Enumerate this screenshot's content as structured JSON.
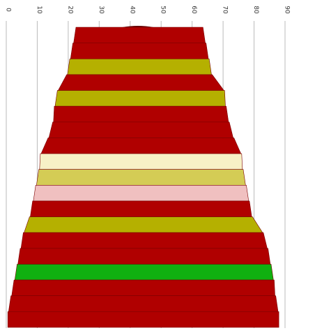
{
  "chart_data": {
    "type": "bar",
    "orientation": "stacked-centered-bands",
    "axis": {
      "ticks": [
        "0",
        "10",
        "20",
        "30",
        "40",
        "50",
        "60",
        "70",
        "80",
        "90"
      ],
      "range": [
        0,
        90
      ],
      "tick_label_rotation": "vertical",
      "grid": true
    },
    "bands": [
      {
        "left": 22.5,
        "right": 63.5,
        "color": "#b00000"
      },
      {
        "left": 21.5,
        "right": 64.5,
        "color": "#b00000"
      },
      {
        "left": 20.5,
        "right": 65.5,
        "color": "#b5b000"
      },
      {
        "left": 19.5,
        "right": 66.5,
        "color": "#b00000"
      },
      {
        "left": 16.5,
        "right": 70.5,
        "color": "#b5b000"
      },
      {
        "left": 15.5,
        "right": 71.0,
        "color": "#b00000"
      },
      {
        "left": 15.0,
        "right": 72.0,
        "color": "#b00000"
      },
      {
        "left": 13.5,
        "right": 73.5,
        "color": "#b00000"
      },
      {
        "left": 11.0,
        "right": 76.0,
        "color": "#f7f1c6"
      },
      {
        "left": 10.5,
        "right": 76.5,
        "color": "#d4cc55"
      },
      {
        "left": 9.5,
        "right": 77.5,
        "color": "#f0c0c0"
      },
      {
        "left": 8.5,
        "right": 78.5,
        "color": "#b00000"
      },
      {
        "left": 7.5,
        "right": 79.5,
        "color": "#b5b000"
      },
      {
        "left": 5.5,
        "right": 83.0,
        "color": "#b00000"
      },
      {
        "left": 4.5,
        "right": 84.5,
        "color": "#b00000"
      },
      {
        "left": 3.5,
        "right": 85.5,
        "color": "#10b010"
      },
      {
        "left": 2.5,
        "right": 86.5,
        "color": "#b00000"
      },
      {
        "left": 1.5,
        "right": 87.0,
        "color": "#b00000"
      },
      {
        "left": 0.5,
        "right": 88.0,
        "color": "#b00000"
      }
    ],
    "top_marker": {
      "left": 37.5,
      "right": 47.5,
      "color": "#6a0000"
    }
  }
}
